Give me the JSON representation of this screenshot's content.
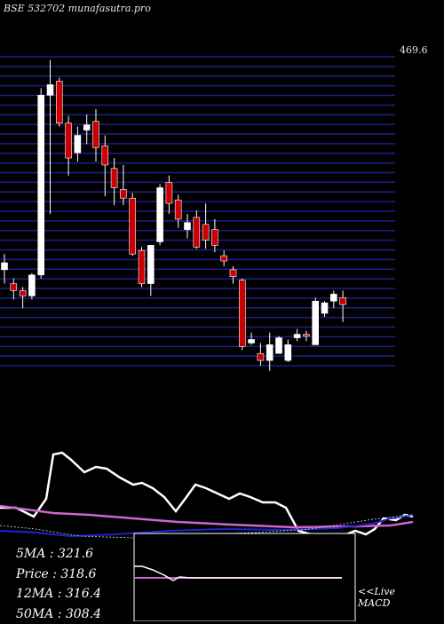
{
  "header": {
    "ticker": "BSE 532702",
    "site": "munafasutra.pro"
  },
  "stats": [
    {
      "label": "5MA",
      "value": "321.6"
    },
    {
      "label": "Price",
      "value": "318.6"
    },
    {
      "label": "12MA",
      "value": "316.4"
    },
    {
      "label": "50MA",
      "value": "308.4"
    }
  ],
  "macd_label": {
    "line1": "<<Live",
    "line2": "MACD"
  },
  "colors": {
    "up": "#ffffff",
    "down": "#cc0000",
    "grid": "#1e1e8c",
    "ma_purple": "#cc66cc",
    "ma_blue": "#2222cc"
  },
  "chart_data": {
    "type": "candlestick",
    "price_axis_top_label": "469.6",
    "ylim": [
      293,
      470
    ],
    "candles": [
      {
        "o": 348,
        "h": 357,
        "l": 340,
        "c": 352
      },
      {
        "o": 340,
        "h": 343,
        "l": 331,
        "c": 336
      },
      {
        "o": 336,
        "h": 338,
        "l": 326,
        "c": 333
      },
      {
        "o": 333,
        "h": 346,
        "l": 331,
        "c": 345
      },
      {
        "o": 345,
        "h": 452,
        "l": 343,
        "c": 448
      },
      {
        "o": 448,
        "h": 468,
        "l": 380,
        "c": 454
      },
      {
        "o": 456,
        "h": 458,
        "l": 430,
        "c": 432
      },
      {
        "o": 432,
        "h": 436,
        "l": 402,
        "c": 412
      },
      {
        "o": 415,
        "h": 430,
        "l": 410,
        "c": 425
      },
      {
        "o": 428,
        "h": 437,
        "l": 420,
        "c": 431
      },
      {
        "o": 433,
        "h": 440,
        "l": 410,
        "c": 418
      },
      {
        "o": 419,
        "h": 425,
        "l": 390,
        "c": 408
      },
      {
        "o": 406,
        "h": 412,
        "l": 385,
        "c": 395
      },
      {
        "o": 394,
        "h": 408,
        "l": 385,
        "c": 389
      },
      {
        "o": 389,
        "h": 392,
        "l": 356,
        "c": 357
      },
      {
        "o": 359,
        "h": 361,
        "l": 338,
        "c": 340
      },
      {
        "o": 340,
        "h": 361,
        "l": 333,
        "c": 362
      },
      {
        "o": 364,
        "h": 397,
        "l": 362,
        "c": 395
      },
      {
        "o": 398,
        "h": 402,
        "l": 380,
        "c": 386
      },
      {
        "o": 388,
        "h": 391,
        "l": 372,
        "c": 377
      },
      {
        "o": 371,
        "h": 380,
        "l": 366,
        "c": 375
      },
      {
        "o": 378,
        "h": 382,
        "l": 360,
        "c": 361
      },
      {
        "o": 374,
        "h": 386,
        "l": 360,
        "c": 365
      },
      {
        "o": 371,
        "h": 377,
        "l": 358,
        "c": 362
      },
      {
        "o": 356,
        "h": 359,
        "l": 350,
        "c": 353
      },
      {
        "o": 348,
        "h": 350,
        "l": 340,
        "c": 344
      },
      {
        "o": 342,
        "h": 343,
        "l": 302,
        "c": 304
      },
      {
        "o": 306,
        "h": 312,
        "l": 305,
        "c": 308
      },
      {
        "o": 300,
        "h": 306,
        "l": 293,
        "c": 296
      },
      {
        "o": 296,
        "h": 312,
        "l": 290,
        "c": 305
      },
      {
        "o": 300,
        "h": 310,
        "l": 300,
        "c": 309
      },
      {
        "o": 296,
        "h": 308,
        "l": 295,
        "c": 305
      },
      {
        "o": 309,
        "h": 314,
        "l": 307,
        "c": 311
      },
      {
        "o": 311,
        "h": 313,
        "l": 307,
        "c": 310
      },
      {
        "o": 305,
        "h": 332,
        "l": 305,
        "c": 330
      },
      {
        "o": 323,
        "h": 330,
        "l": 321,
        "c": 329
      },
      {
        "o": 330,
        "h": 336,
        "l": 326,
        "c": 334
      },
      {
        "o": 332,
        "h": 336,
        "l": 318,
        "c": 328
      }
    ]
  }
}
